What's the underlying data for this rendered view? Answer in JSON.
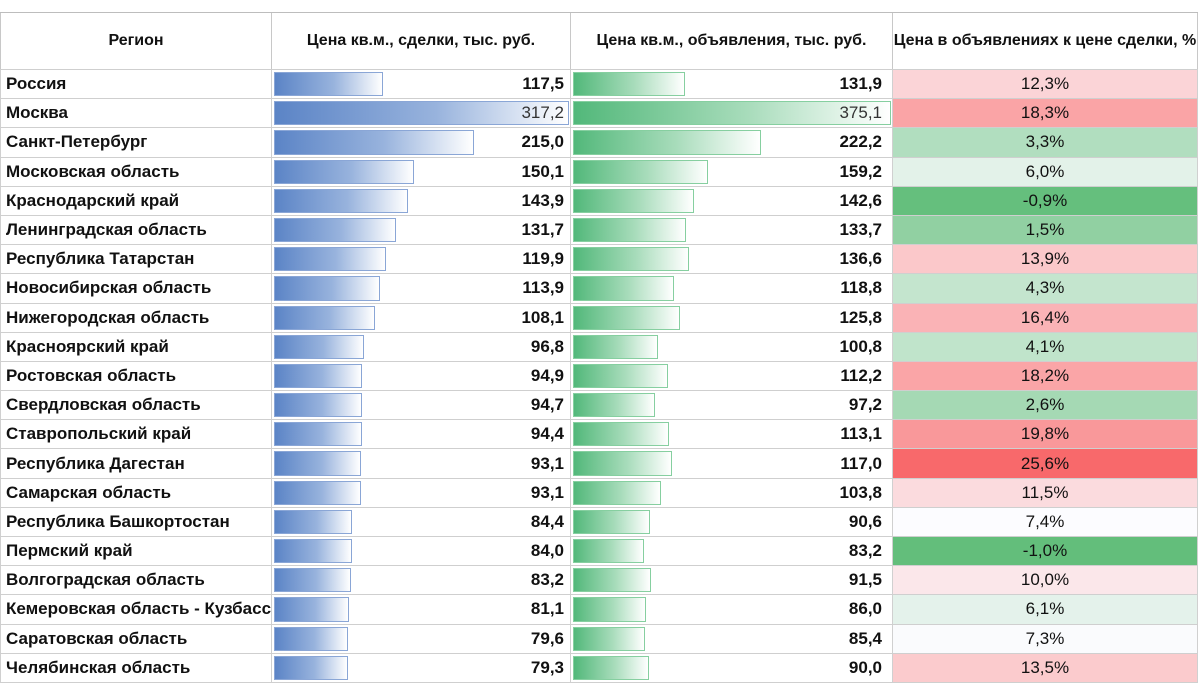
{
  "chart_data": {
    "type": "table",
    "columns": [
      "Регион",
      "Цена кв.м., сделки, тыс. руб.",
      "Цена кв.м., объявления, тыс. руб.",
      "Цена в объявлениях к цене сделки, %"
    ],
    "rows": [
      {
        "region": "Россия",
        "deal": "117,5",
        "ads": "131,9",
        "diff": "12,3%",
        "deal_v": 117.5,
        "ads_v": 131.9,
        "diff_v": 12.3
      },
      {
        "region": "Москва",
        "deal": "317,2",
        "ads": "375,1",
        "diff": "18,3%",
        "deal_v": 317.2,
        "ads_v": 375.1,
        "diff_v": 18.3
      },
      {
        "region": "Санкт-Петербург",
        "deal": "215,0",
        "ads": "222,2",
        "diff": "3,3%",
        "deal_v": 215.0,
        "ads_v": 222.2,
        "diff_v": 3.3
      },
      {
        "region": "Московская область",
        "deal": "150,1",
        "ads": "159,2",
        "diff": "6,0%",
        "deal_v": 150.1,
        "ads_v": 159.2,
        "diff_v": 6.0
      },
      {
        "region": "Краснодарский край",
        "deal": "143,9",
        "ads": "142,6",
        "diff": "-0,9%",
        "deal_v": 143.9,
        "ads_v": 142.6,
        "diff_v": -0.9
      },
      {
        "region": "Ленинградская область",
        "deal": "131,7",
        "ads": "133,7",
        "diff": "1,5%",
        "deal_v": 131.7,
        "ads_v": 133.7,
        "diff_v": 1.5
      },
      {
        "region": "Республика Татарстан",
        "deal": "119,9",
        "ads": "136,6",
        "diff": "13,9%",
        "deal_v": 119.9,
        "ads_v": 136.6,
        "diff_v": 13.9
      },
      {
        "region": "Новосибирская область",
        "deal": "113,9",
        "ads": "118,8",
        "diff": "4,3%",
        "deal_v": 113.9,
        "ads_v": 118.8,
        "diff_v": 4.3
      },
      {
        "region": "Нижегородская область",
        "deal": "108,1",
        "ads": "125,8",
        "diff": "16,4%",
        "deal_v": 108.1,
        "ads_v": 125.8,
        "diff_v": 16.4
      },
      {
        "region": "Красноярский край",
        "deal": "96,8",
        "ads": "100,8",
        "diff": "4,1%",
        "deal_v": 96.8,
        "ads_v": 100.8,
        "diff_v": 4.1
      },
      {
        "region": "Ростовская область",
        "deal": "94,9",
        "ads": "112,2",
        "diff": "18,2%",
        "deal_v": 94.9,
        "ads_v": 112.2,
        "diff_v": 18.2
      },
      {
        "region": "Свердловская область",
        "deal": "94,7",
        "ads": "97,2",
        "diff": "2,6%",
        "deal_v": 94.7,
        "ads_v": 97.2,
        "diff_v": 2.6
      },
      {
        "region": "Ставропольский край",
        "deal": "94,4",
        "ads": "113,1",
        "diff": "19,8%",
        "deal_v": 94.4,
        "ads_v": 113.1,
        "diff_v": 19.8
      },
      {
        "region": "Республика Дагестан",
        "deal": "93,1",
        "ads": "117,0",
        "diff": "25,6%",
        "deal_v": 93.1,
        "ads_v": 117.0,
        "diff_v": 25.6
      },
      {
        "region": "Самарская область",
        "deal": "93,1",
        "ads": "103,8",
        "diff": "11,5%",
        "deal_v": 93.1,
        "ads_v": 103.8,
        "diff_v": 11.5
      },
      {
        "region": "Республика Башкортостан",
        "deal": "84,4",
        "ads": "90,6",
        "diff": "7,4%",
        "deal_v": 84.4,
        "ads_v": 90.6,
        "diff_v": 7.4
      },
      {
        "region": "Пермский край",
        "deal": "84,0",
        "ads": "83,2",
        "diff": "-1,0%",
        "deal_v": 84.0,
        "ads_v": 83.2,
        "diff_v": -1.0
      },
      {
        "region": "Волгоградская область",
        "deal": "83,2",
        "ads": "91,5",
        "diff": "10,0%",
        "deal_v": 83.2,
        "ads_v": 91.5,
        "diff_v": 10.0
      },
      {
        "region": "Кемеровская область - Кузбасс",
        "deal": "81,1",
        "ads": "86,0",
        "diff": "6,1%",
        "deal_v": 81.1,
        "ads_v": 86.0,
        "diff_v": 6.1
      },
      {
        "region": "Саратовская область",
        "deal": "79,6",
        "ads": "85,4",
        "diff": "7,3%",
        "deal_v": 79.6,
        "ads_v": 85.4,
        "diff_v": 7.3
      },
      {
        "region": "Челябинская область",
        "deal": "79,3",
        "ads": "90,0",
        "diff": "13,5%",
        "deal_v": 79.3,
        "ads_v": 90.0,
        "diff_v": 13.5
      }
    ],
    "bar_max": {
      "deal": 317.2,
      "ads": 375.1
    },
    "colors": {
      "deal_bar": "#5b84c6",
      "ads_bar": "#52b87a",
      "diff_positive": "#f8696b",
      "diff_negative": "#63be7b",
      "diff_mid": "#fcfcff"
    }
  }
}
